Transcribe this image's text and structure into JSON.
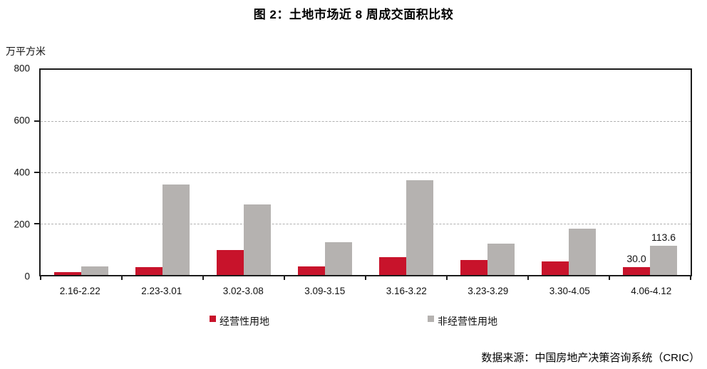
{
  "title": "图 2：土地市场近 8 周成交面积比较",
  "unit_label": "万平方米",
  "source": "数据来源：中国房地产决策咨询系统（CRIC）",
  "colors": {
    "series_commercial": "#c8132b",
    "series_noncommercial": "#b5b2b0",
    "axis_frame": "#1c1c1c",
    "gridline": "#b0b0b0"
  },
  "chart_data": {
    "type": "bar",
    "title": "图 2：土地市场近 8 周成交面积比较",
    "ylabel": "万平方米",
    "xlabel": "",
    "ylim": [
      0,
      800
    ],
    "yticks": [
      0,
      200,
      400,
      600,
      800
    ],
    "grid": true,
    "legend_position": "bottom",
    "categories": [
      "2.16-2.22",
      "2.23-3.01",
      "3.02-3.08",
      "3.09-3.15",
      "3.16-3.22",
      "3.23-3.29",
      "3.30-4.05",
      "4.06-4.12"
    ],
    "series": [
      {
        "name": "经营性用地",
        "color": "#c8132b",
        "values": [
          12,
          30,
          97,
          33,
          70,
          57,
          53,
          30.0
        ],
        "point_labels": [
          "",
          "",
          "",
          "",
          "",
          "",
          "",
          "30.0"
        ]
      },
      {
        "name": "非经营性用地",
        "color": "#b5b2b0",
        "values": [
          32,
          353,
          276,
          128,
          370,
          123,
          180,
          113.6
        ],
        "point_labels": [
          "",
          "",
          "",
          "",
          "",
          "",
          "",
          "113.6"
        ]
      }
    ]
  }
}
